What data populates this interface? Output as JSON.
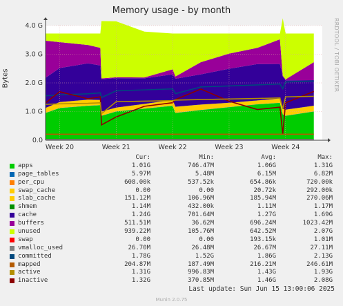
{
  "chart_data": {
    "type": "area",
    "title": "Memory usage - by month",
    "side_label": "RRDTOOL / TOBI OETIKER",
    "ylabel": "Bytes",
    "ylim": [
      0,
      4.0
    ],
    "y_ticks": [
      "0.0",
      "1.0 G",
      "2.0 G",
      "3.0 G",
      "4.0 G"
    ],
    "x_ticks": [
      "Week 20",
      "Week 21",
      "Week 22",
      "Week 23",
      "Week 24"
    ],
    "columns": [
      "Cur:",
      "Min:",
      "Avg:",
      "Max:"
    ],
    "series": [
      {
        "name": "apps",
        "color": "#00cc00",
        "cur": "1.01G",
        "min": "746.47M",
        "avg": "1.06G",
        "max": "1.31G"
      },
      {
        "name": "page_tables",
        "color": "#0066b3",
        "cur": "5.97M",
        "min": "5.48M",
        "avg": "6.15M",
        "max": "6.82M"
      },
      {
        "name": "per_cpu",
        "color": "#ff8000",
        "cur": "608.00k",
        "min": "537.52k",
        "avg": "654.86k",
        "max": "720.00k"
      },
      {
        "name": "swap_cache",
        "color": "#ffcc00",
        "cur": "0.00",
        "min": "0.00",
        "avg": "20.72k",
        "max": "292.00k"
      },
      {
        "name": "slab_cache",
        "color": "#ffcc00",
        "cur": "151.12M",
        "min": "106.96M",
        "avg": "185.94M",
        "max": "270.06M"
      },
      {
        "name": "shmem",
        "color": "#008f00",
        "cur": "1.14M",
        "min": "432.00k",
        "avg": "1.11M",
        "max": "1.17M"
      },
      {
        "name": "cache",
        "color": "#330099",
        "cur": "1.24G",
        "min": "701.64M",
        "avg": "1.27G",
        "max": "1.69G"
      },
      {
        "name": "buffers",
        "color": "#990099",
        "cur": "511.51M",
        "min": "36.62M",
        "avg": "696.24M",
        "max": "1023.42M"
      },
      {
        "name": "unused",
        "color": "#ccff00",
        "cur": "939.22M",
        "min": "105.76M",
        "avg": "642.52M",
        "max": "2.07G"
      },
      {
        "name": "swap",
        "color": "#ff0000",
        "cur": "0.00",
        "min": "0.00",
        "avg": "193.15k",
        "max": "1.01M"
      },
      {
        "name": "vmalloc_used",
        "color": "#808080",
        "cur": "26.70M",
        "min": "26.48M",
        "avg": "26.67M",
        "max": "27.11M"
      },
      {
        "name": "committed",
        "color": "#00487d",
        "cur": "1.78G",
        "min": "1.52G",
        "avg": "1.86G",
        "max": "2.13G"
      },
      {
        "name": "mapped",
        "color": "#b35a00",
        "cur": "204.87M",
        "min": "187.49M",
        "avg": "216.21M",
        "max": "246.61M"
      },
      {
        "name": "active",
        "color": "#b38f00",
        "cur": "1.31G",
        "min": "996.83M",
        "avg": "1.43G",
        "max": "1.93G"
      },
      {
        "name": "inactive",
        "color": "#8c0000",
        "cur": "1.32G",
        "min": "370.85M",
        "avg": "1.46G",
        "max": "2.08G"
      }
    ],
    "stack_samples_x_week": [
      19.75,
      20.0,
      20.5,
      20.72,
      20.74,
      21.0,
      21.5,
      22.0,
      22.05,
      22.5,
      23.0,
      23.5,
      23.9,
      23.95,
      24.0,
      24.5
    ],
    "apps_samples_G": [
      0.95,
      1.12,
      1.2,
      1.22,
      0.85,
      1.0,
      1.1,
      1.2,
      0.95,
      1.05,
      1.15,
      1.25,
      1.3,
      0.9,
      0.85,
      1.0
    ],
    "unused_samples_G": [
      0.25,
      0.3,
      0.4,
      0.5,
      2.0,
      1.95,
      1.6,
      1.25,
      1.5,
      1.0,
      0.7,
      0.5,
      0.2,
      2.0,
      1.6,
      1.0
    ],
    "last_update": "Last update: Sun Jun 15 13:00:06 2025",
    "generator": "Munin 2.0.75"
  }
}
